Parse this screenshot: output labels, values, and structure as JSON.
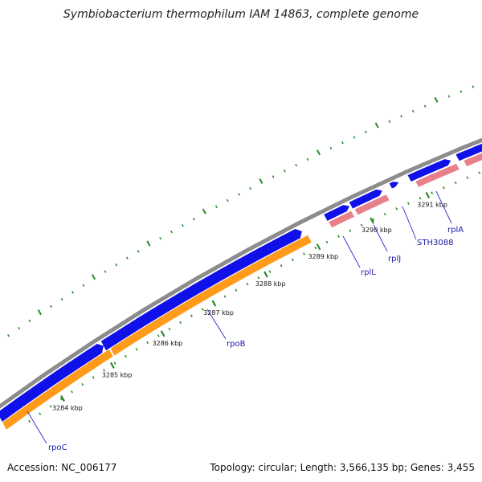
{
  "title": "Symbiobacterium thermophilum IAM 14863, complete genome",
  "footer": {
    "accession": "Accession: NC_006177",
    "topology": "Topology: circular; Length: 3,566,135 bp; Genes: 3,455"
  },
  "colors": {
    "backbone": "#8c8c8c",
    "forward_gene": "#1010e8",
    "rna_polymerase_strand": "#ff9a1a",
    "ribosomal_strand": "#e8808a",
    "tick": "#2a8a2a",
    "label_line": "#2a2ad0"
  },
  "chart_data": {
    "type": "genome-map",
    "ticks_kbp": [
      3284,
      3285,
      3286,
      3287,
      3288,
      3289,
      3290,
      3291
    ],
    "tick_labels": [
      "3284 kbp",
      "3285 kbp",
      "3286 kbp",
      "3287 kbp",
      "3288 kbp",
      "3289 kbp",
      "3290 kbp",
      "3291 kbp"
    ],
    "genes": [
      {
        "name": "rpoC"
      },
      {
        "name": "rpoB"
      },
      {
        "name": "rplL"
      },
      {
        "name": "rplJ"
      },
      {
        "name": "STH3088"
      },
      {
        "name": "rplA"
      }
    ]
  }
}
